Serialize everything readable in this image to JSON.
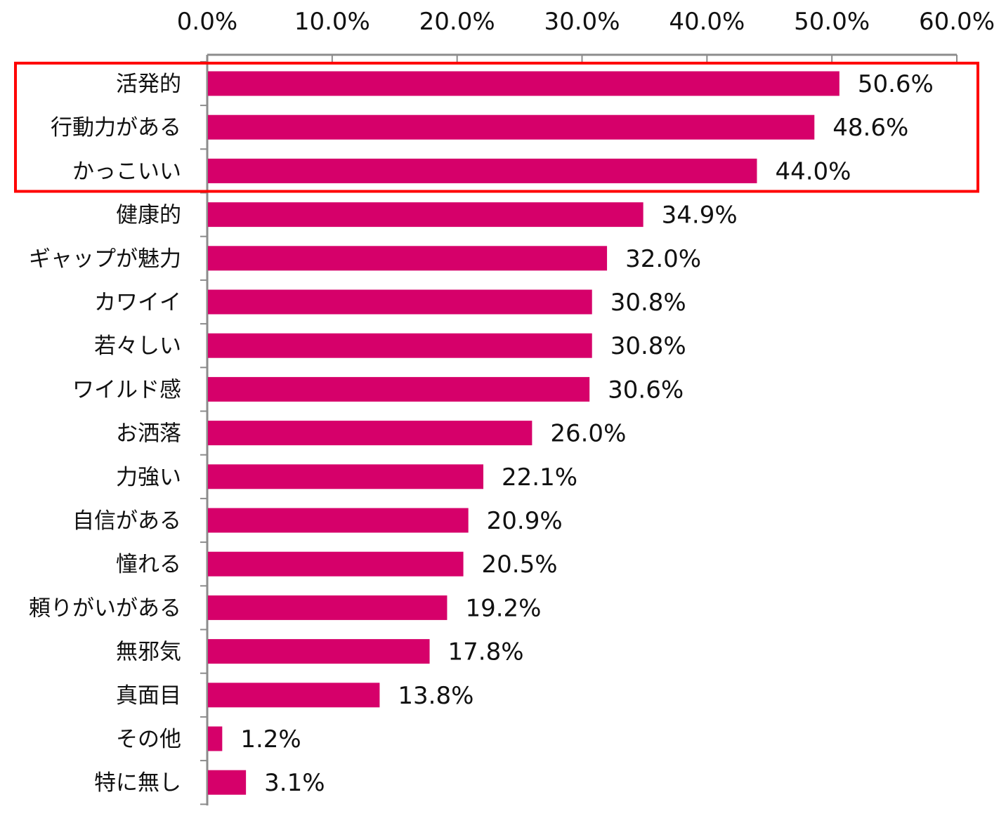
{
  "chart_data": {
    "type": "bar",
    "orientation": "horizontal",
    "categories": [
      "活発的",
      "行動力がある",
      "かっこいい",
      "健康的",
      "ギャップが魅力",
      "カワイイ",
      "若々しい",
      "ワイルド感",
      "お洒落",
      "力強い",
      "自信がある",
      "憧れる",
      "頼りがいがある",
      "無邪気",
      "真面目",
      "その他",
      "特に無し"
    ],
    "values": [
      50.6,
      48.6,
      44.0,
      34.9,
      32.0,
      30.8,
      30.8,
      30.6,
      26.0,
      22.1,
      20.9,
      20.5,
      19.2,
      17.8,
      13.8,
      1.2,
      3.1
    ],
    "value_labels": [
      "50.6%",
      "48.6%",
      "44.0%",
      "34.9%",
      "32.0%",
      "30.8%",
      "30.8%",
      "30.6%",
      "26.0%",
      "22.1%",
      "20.9%",
      "20.5%",
      "19.2%",
      "17.8%",
      "13.8%",
      "1.2%",
      "3.1%"
    ],
    "xlim": [
      0,
      60
    ],
    "x_ticks": [
      0,
      10,
      20,
      30,
      40,
      50,
      60
    ],
    "x_tick_labels": [
      "0.0%",
      "10.0%",
      "20.0%",
      "30.0%",
      "40.0%",
      "50.0%",
      "60.0%"
    ],
    "x_axis_position": "top",
    "grid": false,
    "highlight": {
      "categories": [
        "活発的",
        "行動力がある",
        "かっこいい"
      ],
      "color": "#ff0000"
    },
    "colors": {
      "bar": "#d6006a",
      "axis": "#8c8c8c",
      "text": "#111111"
    }
  }
}
